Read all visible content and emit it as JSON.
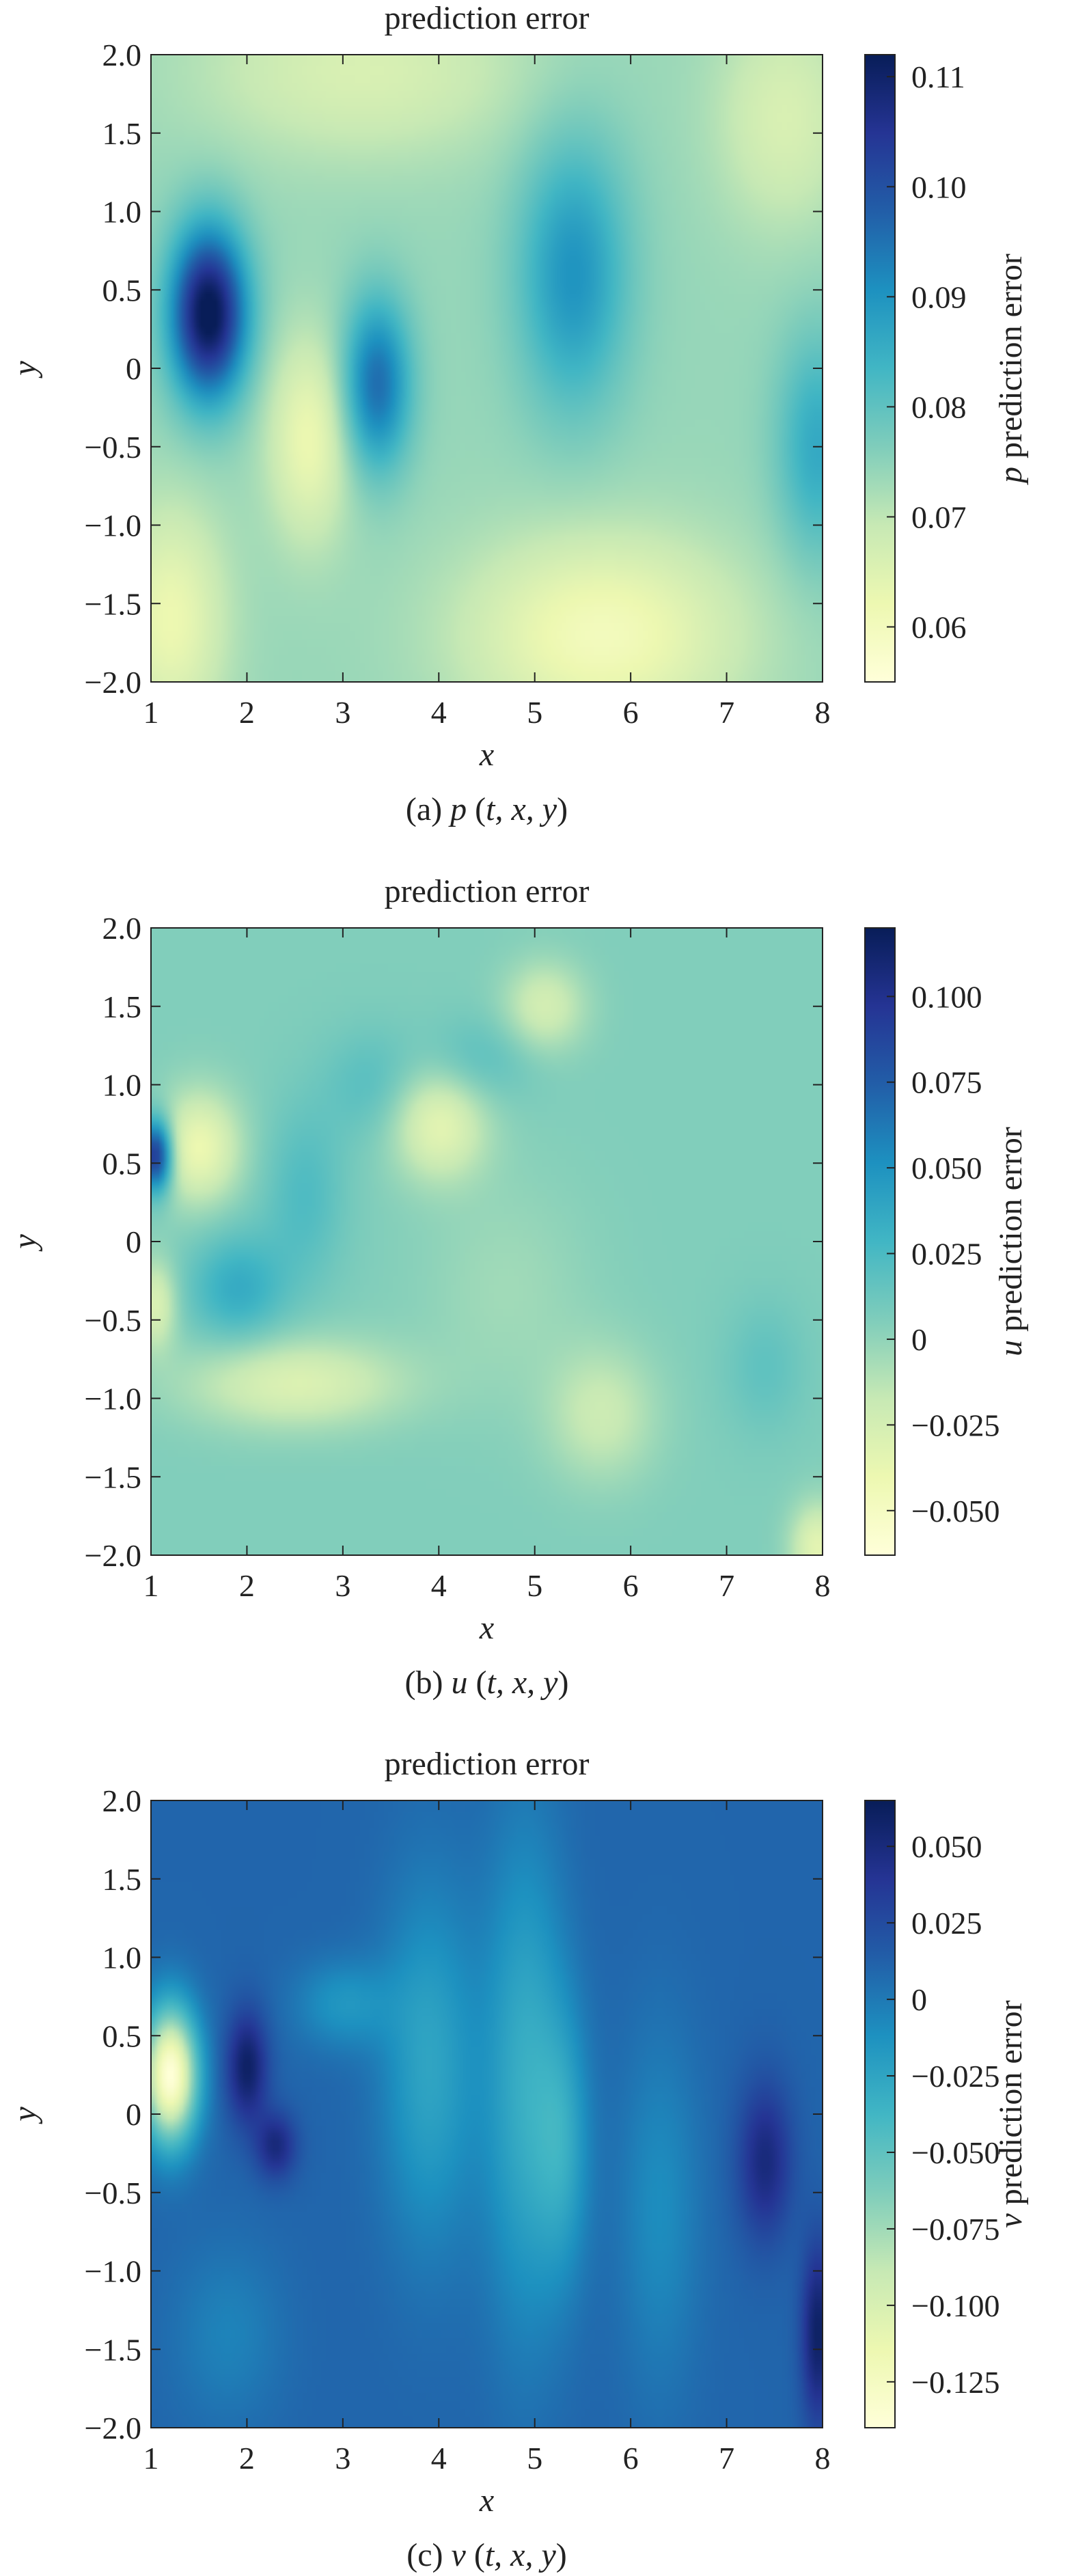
{
  "colormap": [
    "#ffffd9",
    "#edf8b1",
    "#c7e9b4",
    "#7fcdbb",
    "#41b6c4",
    "#1d91c0",
    "#225ea8",
    "#253494",
    "#081d58"
  ],
  "chart_data": [
    {
      "type": "heatmap",
      "title": "prediction error",
      "xlabel": "x",
      "ylabel": "y",
      "caption": "(a) p (t, x, y)",
      "caption_parts": {
        "open": "(a) ",
        "var": "p",
        "rest": " (",
        "args": "t, x, y",
        "close": ")"
      },
      "xlim": [
        1,
        8
      ],
      "ylim": [
        -2,
        2
      ],
      "xticks": [
        "1",
        "2",
        "3",
        "4",
        "5",
        "6",
        "7",
        "8"
      ],
      "xtick_values": [
        1,
        2,
        3,
        4,
        5,
        6,
        7,
        8
      ],
      "yticks": [
        "2.0",
        "1.5",
        "1.0",
        "0.5",
        "0",
        "−0.5",
        "−1.0",
        "−1.5",
        "−2.0"
      ],
      "ytick_values": [
        2.0,
        1.5,
        1.0,
        0.5,
        0,
        -0.5,
        -1.0,
        -1.5,
        -2.0
      ],
      "colorbar": {
        "label_var": "p",
        "label_rest": " prediction error",
        "range": [
          0.055,
          0.112
        ],
        "ticks": [
          {
            "value": 0.11,
            "label": "0.11"
          },
          {
            "value": 0.1,
            "label": "0.10"
          },
          {
            "value": 0.09,
            "label": "0.09"
          },
          {
            "value": 0.08,
            "label": "0.08"
          },
          {
            "value": 0.07,
            "label": "0.07"
          },
          {
            "value": 0.06,
            "label": "0.06"
          }
        ]
      },
      "field": {
        "base": 0.074,
        "blobs": [
          {
            "x": 1.6,
            "y": 0.35,
            "sx": 0.28,
            "sy": 0.38,
            "a": 0.04
          },
          {
            "x": 3.35,
            "y": -0.1,
            "sx": 0.25,
            "sy": 0.38,
            "a": 0.022
          },
          {
            "x": 5.4,
            "y": 0.6,
            "sx": 0.4,
            "sy": 0.6,
            "a": 0.016
          },
          {
            "x": 7.95,
            "y": -0.5,
            "sx": 0.3,
            "sy": 0.5,
            "a": 0.012
          },
          {
            "x": 2.65,
            "y": -0.45,
            "sx": 0.3,
            "sy": 0.45,
            "a": -0.012
          },
          {
            "x": 5.7,
            "y": -1.7,
            "sx": 1.0,
            "sy": 0.45,
            "a": -0.014
          },
          {
            "x": 1.2,
            "y": -1.6,
            "sx": 0.4,
            "sy": 0.5,
            "a": -0.012
          },
          {
            "x": 3.2,
            "y": 1.9,
            "sx": 1.2,
            "sy": 0.4,
            "a": -0.008
          },
          {
            "x": 7.6,
            "y": 1.6,
            "sx": 0.5,
            "sy": 0.5,
            "a": -0.008
          }
        ]
      }
    },
    {
      "type": "heatmap",
      "title": "prediction error",
      "xlabel": "x",
      "ylabel": "y",
      "caption": "(b) u (t, x, y)",
      "caption_parts": {
        "open": "(b) ",
        "var": "u",
        "rest": " (",
        "args": "t, x, y",
        "close": ")"
      },
      "xlim": [
        1,
        8
      ],
      "ylim": [
        -2,
        2
      ],
      "xticks": [
        "1",
        "2",
        "3",
        "4",
        "5",
        "6",
        "7",
        "8"
      ],
      "xtick_values": [
        1,
        2,
        3,
        4,
        5,
        6,
        7,
        8
      ],
      "yticks": [
        "2.0",
        "1.5",
        "1.0",
        "0.5",
        "0",
        "−0.5",
        "−1.0",
        "−1.5",
        "−2.0"
      ],
      "ytick_values": [
        2.0,
        1.5,
        1.0,
        0.5,
        0,
        -0.5,
        -1.0,
        -1.5,
        -2.0
      ],
      "colorbar": {
        "label_var": "u",
        "label_rest": " prediction error",
        "range": [
          -0.063,
          0.12
        ],
        "ticks": [
          {
            "value": 0.1,
            "label": "0.100"
          },
          {
            "value": 0.075,
            "label": "0.075"
          },
          {
            "value": 0.05,
            "label": "0.050"
          },
          {
            "value": 0.025,
            "label": "0.025"
          },
          {
            "value": 0,
            "label": "0"
          },
          {
            "value": -0.025,
            "label": "−0.025"
          },
          {
            "value": -0.05,
            "label": "−0.050"
          }
        ]
      },
      "field": {
        "base": 0.005,
        "blobs": [
          {
            "x": 1.05,
            "y": 0.55,
            "sx": 0.12,
            "sy": 0.16,
            "a": 0.1
          },
          {
            "x": 1.9,
            "y": -0.3,
            "sx": 0.35,
            "sy": 0.25,
            "a": 0.03
          },
          {
            "x": 2.6,
            "y": 0.3,
            "sx": 0.3,
            "sy": 0.4,
            "a": 0.018
          },
          {
            "x": 3.3,
            "y": 1.0,
            "sx": 0.35,
            "sy": 0.25,
            "a": 0.015
          },
          {
            "x": 4.4,
            "y": 1.15,
            "sx": 0.4,
            "sy": 0.2,
            "a": 0.015
          },
          {
            "x": 1.5,
            "y": 0.6,
            "sx": 0.3,
            "sy": 0.25,
            "a": -0.045
          },
          {
            "x": 4.0,
            "y": 0.75,
            "sx": 0.35,
            "sy": 0.25,
            "a": -0.04
          },
          {
            "x": 2.5,
            "y": -0.9,
            "sx": 0.8,
            "sy": 0.2,
            "a": -0.035
          },
          {
            "x": 5.1,
            "y": 1.5,
            "sx": 0.3,
            "sy": 0.2,
            "a": -0.03
          },
          {
            "x": 5.7,
            "y": -1.1,
            "sx": 0.4,
            "sy": 0.3,
            "a": -0.025
          },
          {
            "x": 1.05,
            "y": -0.4,
            "sx": 0.15,
            "sy": 0.2,
            "a": -0.035
          },
          {
            "x": 7.95,
            "y": -1.95,
            "sx": 0.2,
            "sy": 0.2,
            "a": -0.04
          },
          {
            "x": 7.4,
            "y": -0.8,
            "sx": 0.3,
            "sy": 0.3,
            "a": 0.012
          },
          {
            "x": 4.7,
            "y": -0.3,
            "sx": 0.6,
            "sy": 0.5,
            "a": -0.01
          }
        ]
      }
    },
    {
      "type": "heatmap",
      "title": "prediction error",
      "xlabel": "x",
      "ylabel": "y",
      "caption": "(c) v (t, x, y)",
      "caption_parts": {
        "open": "(c) ",
        "var": "v",
        "rest": " (",
        "args": "t, x, y",
        "close": ")"
      },
      "xlim": [
        1,
        8
      ],
      "ylim": [
        -2,
        2
      ],
      "xticks": [
        "1",
        "2",
        "3",
        "4",
        "5",
        "6",
        "7",
        "8"
      ],
      "xtick_values": [
        1,
        2,
        3,
        4,
        5,
        6,
        7,
        8
      ],
      "yticks": [
        "2.0",
        "1.5",
        "1.0",
        "0.5",
        "0",
        "−0.5",
        "−1.0",
        "−1.5",
        "−2.0"
      ],
      "ytick_values": [
        2.0,
        1.5,
        1.0,
        0.5,
        0,
        -0.5,
        -1.0,
        -1.5,
        -2.0
      ],
      "colorbar": {
        "label_var": "v",
        "label_rest": " prediction error",
        "range": [
          -0.14,
          0.065
        ],
        "ticks": [
          {
            "value": 0.05,
            "label": "0.050"
          },
          {
            "value": 0.025,
            "label": "0.025"
          },
          {
            "value": 0,
            "label": "0"
          },
          {
            "value": -0.025,
            "label": "−0.025"
          },
          {
            "value": -0.05,
            "label": "−0.050"
          },
          {
            "value": -0.075,
            "label": "−0.075"
          },
          {
            "value": -0.1,
            "label": "−0.100"
          },
          {
            "value": -0.125,
            "label": "−0.125"
          }
        ]
      },
      "field": {
        "base": 0.01,
        "blobs": [
          {
            "x": 1.2,
            "y": 0.25,
            "sx": 0.2,
            "sy": 0.3,
            "a": -0.15
          },
          {
            "x": 2.0,
            "y": 0.3,
            "sx": 0.15,
            "sy": 0.25,
            "a": 0.05
          },
          {
            "x": 2.3,
            "y": -0.2,
            "sx": 0.15,
            "sy": 0.15,
            "a": 0.04
          },
          {
            "x": 7.4,
            "y": -0.3,
            "sx": 0.2,
            "sy": 0.35,
            "a": 0.04
          },
          {
            "x": 7.95,
            "y": -1.4,
            "sx": 0.12,
            "sy": 0.4,
            "a": 0.05
          },
          {
            "x": 4.9,
            "y": 0.2,
            "sx": 0.3,
            "sy": 1.1,
            "a": -0.04
          },
          {
            "x": 3.9,
            "y": 0.3,
            "sx": 0.35,
            "sy": 0.8,
            "a": -0.035
          },
          {
            "x": 5.3,
            "y": -0.2,
            "sx": 0.2,
            "sy": 0.6,
            "a": -0.03
          },
          {
            "x": 6.3,
            "y": -0.6,
            "sx": 0.3,
            "sy": 0.8,
            "a": -0.02
          },
          {
            "x": 3.0,
            "y": 0.7,
            "sx": 0.35,
            "sy": 0.2,
            "a": -0.025
          },
          {
            "x": 1.8,
            "y": -1.4,
            "sx": 0.4,
            "sy": 0.4,
            "a": -0.015
          }
        ]
      }
    }
  ]
}
